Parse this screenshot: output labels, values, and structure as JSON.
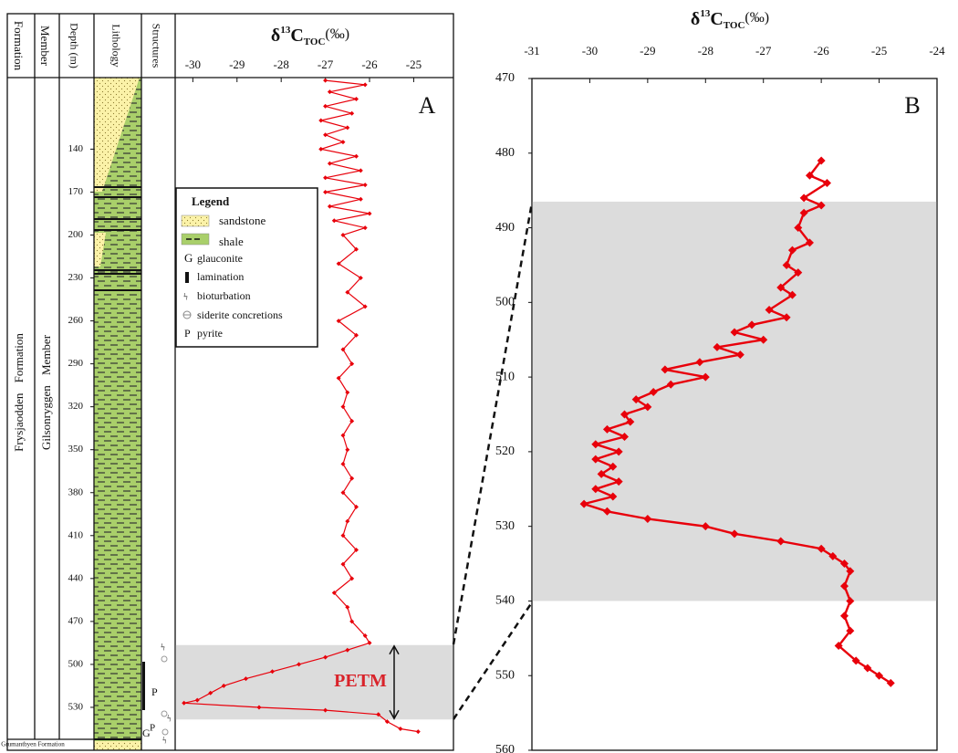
{
  "chart_data": [
    {
      "type": "line",
      "panel": "A",
      "title": {
        "symbol": "δ",
        "isotope": "13",
        "element": "C",
        "subscript": "TOC",
        "unit": "(‰)"
      },
      "xlim": [
        -30.4,
        -24.1
      ],
      "xticks": [
        -30,
        -29,
        -28,
        -27,
        -26,
        -25
      ],
      "ylim": [
        90,
        560
      ],
      "y_inverted": true,
      "yticks": [
        140,
        170,
        200,
        230,
        260,
        290,
        320,
        350,
        380,
        410,
        440,
        470,
        500,
        530
      ],
      "band": [
        486.5,
        538.5
      ],
      "band_label": "PETM",
      "color": "#e8000b",
      "depths": [
        92,
        95,
        100,
        105,
        110,
        115,
        120,
        125,
        130,
        135,
        140,
        145,
        150,
        155,
        160,
        165,
        170,
        175,
        180,
        185,
        190,
        195,
        200,
        210,
        220,
        230,
        240,
        250,
        260,
        270,
        280,
        290,
        300,
        310,
        320,
        330,
        340,
        350,
        360,
        370,
        380,
        390,
        400,
        410,
        420,
        430,
        440,
        450,
        460,
        470,
        480,
        485,
        490,
        495,
        500,
        505,
        510,
        515,
        520,
        525,
        527,
        530,
        532,
        535,
        540,
        545,
        547
      ],
      "values": [
        -27.0,
        -26.1,
        -26.9,
        -26.3,
        -27.0,
        -26.4,
        -27.1,
        -26.5,
        -27.0,
        -26.6,
        -27.1,
        -26.3,
        -26.9,
        -26.2,
        -27.0,
        -26.1,
        -27.0,
        -26.2,
        -26.9,
        -26.0,
        -26.8,
        -26.1,
        -26.6,
        -26.3,
        -26.7,
        -26.2,
        -26.5,
        -26.1,
        -26.7,
        -26.3,
        -26.6,
        -26.4,
        -26.7,
        -26.5,
        -26.6,
        -26.4,
        -26.6,
        -26.5,
        -26.6,
        -26.4,
        -26.6,
        -26.3,
        -26.5,
        -26.6,
        -26.3,
        -26.6,
        -26.4,
        -26.8,
        -26.5,
        -26.4,
        -26.1,
        -26.0,
        -26.5,
        -27.0,
        -27.6,
        -28.2,
        -28.8,
        -29.3,
        -29.6,
        -29.9,
        -30.2,
        -28.5,
        -27.0,
        -25.8,
        -25.6,
        -25.3,
        -24.9
      ]
    },
    {
      "type": "line",
      "panel": "B",
      "title": {
        "symbol": "δ",
        "isotope": "13",
        "element": "C",
        "subscript": "TOC",
        "unit": "(‰)"
      },
      "xlim": [
        -31,
        -24
      ],
      "xticks": [
        -31,
        -30,
        -29,
        -28,
        -27,
        -26,
        -25,
        -24
      ],
      "ylim": [
        470,
        560
      ],
      "y_inverted": true,
      "yticks": [
        470,
        480,
        490,
        500,
        510,
        520,
        530,
        540,
        550,
        560
      ],
      "band": [
        486.5,
        540
      ],
      "color": "#e8000b",
      "depths": [
        481,
        483,
        484,
        486,
        487,
        488,
        490,
        492,
        493,
        495,
        496,
        498,
        499,
        501,
        502,
        503,
        504,
        505,
        506,
        507,
        508,
        509,
        510,
        511,
        512,
        513,
        514,
        515,
        516,
        517,
        518,
        519,
        520,
        521,
        522,
        523,
        524,
        525,
        526,
        527,
        528,
        529,
        530,
        531,
        532,
        533,
        534,
        535,
        536,
        538,
        540,
        542,
        544,
        546,
        548,
        549,
        550,
        551
      ],
      "values": [
        -26.0,
        -26.2,
        -25.9,
        -26.3,
        -26.0,
        -26.3,
        -26.4,
        -26.2,
        -26.5,
        -26.6,
        -26.4,
        -26.7,
        -26.5,
        -26.9,
        -26.6,
        -27.2,
        -27.5,
        -27.0,
        -27.8,
        -27.4,
        -28.1,
        -28.7,
        -28.0,
        -28.6,
        -28.9,
        -29.2,
        -29.0,
        -29.4,
        -29.3,
        -29.7,
        -29.4,
        -29.9,
        -29.5,
        -29.9,
        -29.6,
        -29.8,
        -29.5,
        -29.9,
        -29.6,
        -30.1,
        -29.7,
        -29.0,
        -28.0,
        -27.5,
        -26.7,
        -26.0,
        -25.8,
        -25.6,
        -25.5,
        -25.6,
        -25.5,
        -25.6,
        -25.5,
        -25.7,
        -25.4,
        -25.2,
        -25.0,
        -24.8
      ]
    }
  ],
  "column": {
    "headers": [
      "Formation",
      "Member",
      "Depth (m)",
      "Lithology",
      "Structures"
    ],
    "formation": "Frysjaodden Formation",
    "member": "Gilsonryggen Member",
    "lower_formation": "Grumantbyen Formation",
    "structure_letters": [
      "P",
      "G",
      "P"
    ]
  },
  "legend": {
    "title": "Legend",
    "items": [
      {
        "label": "sandstone"
      },
      {
        "label": "shale"
      },
      {
        "symbol": "G",
        "label": "glauconite"
      },
      {
        "label": "lamination"
      },
      {
        "label": "bioturbation"
      },
      {
        "label": "siderite concretions"
      },
      {
        "symbol": "P",
        "label": "pyrite"
      }
    ]
  }
}
